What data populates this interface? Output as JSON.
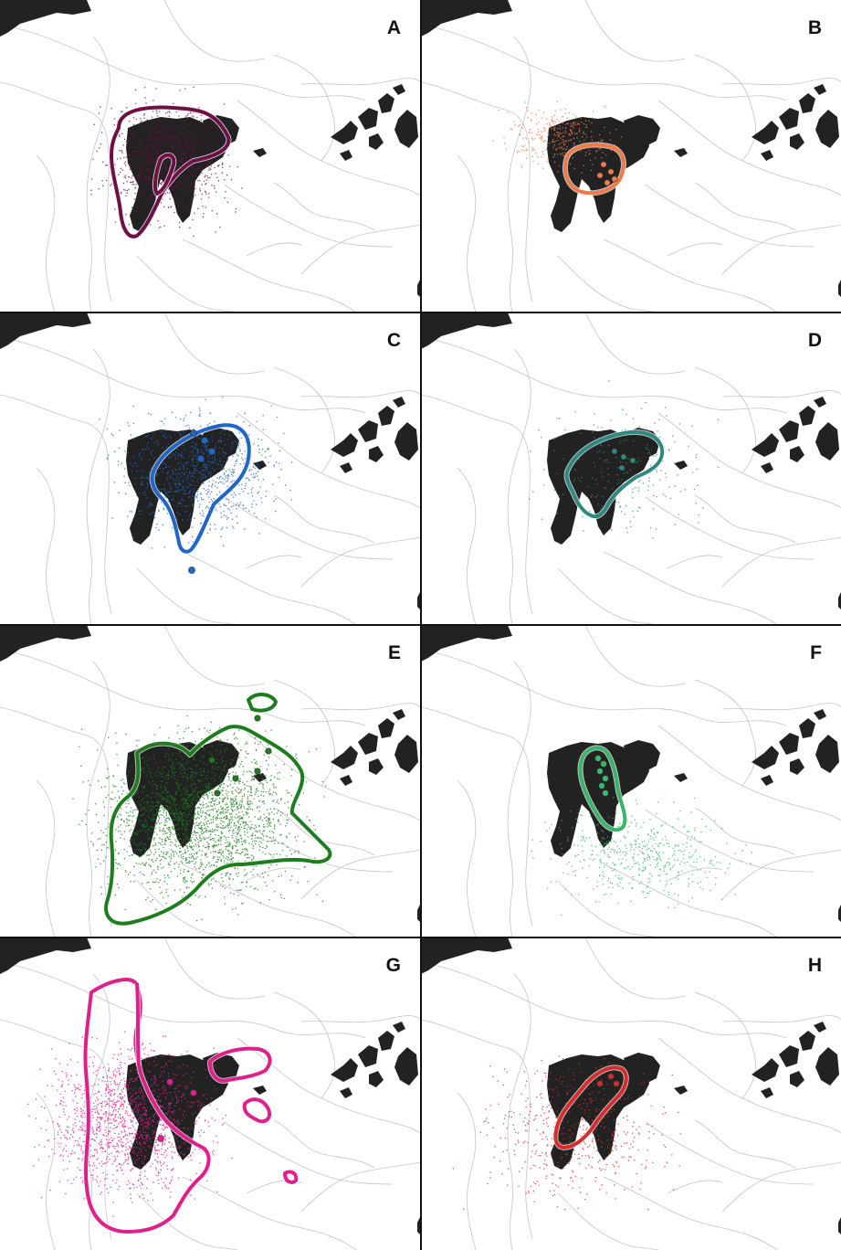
{
  "figure": {
    "panels": [
      {
        "label": "A",
        "color": "#6e1046",
        "range_shape": "svalbard-west-and-north",
        "has_colony_markers": false
      },
      {
        "label": "B",
        "color": "#f07a4a",
        "range_shape": "small-central-ring",
        "has_colony_markers": true
      },
      {
        "label": "C",
        "color": "#1f66c6",
        "range_shape": "east-svalbard-lobe",
        "has_colony_markers": true
      },
      {
        "label": "D",
        "color": "#2e8a80",
        "range_shape": "nordaustlandet-lobe",
        "has_colony_markers": true
      },
      {
        "label": "E",
        "color": "#1e7d1e",
        "range_shape": "broad-southern-basin",
        "has_colony_markers": true
      },
      {
        "label": "F",
        "color": "#38b56a",
        "range_shape": "narrow-central-ring",
        "has_colony_markers": true
      },
      {
        "label": "G",
        "color": "#e0208a",
        "range_shape": "western-shelf-with-islets",
        "has_colony_markers": true
      },
      {
        "label": "H",
        "color": "#d82c2c",
        "range_shape": "small-central-ring",
        "has_colony_markers": true
      }
    ],
    "land_color": "#222222",
    "bathymetry_color": "#c4c4c4"
  }
}
